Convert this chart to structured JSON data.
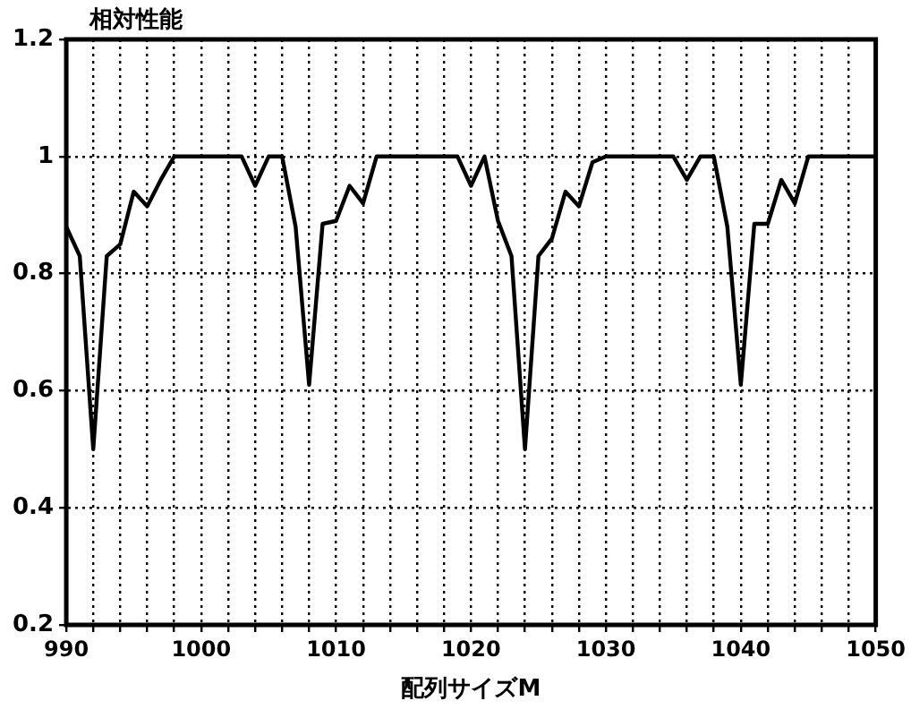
{
  "chart_data": {
    "type": "line",
    "xlabel": "配列サイズM",
    "ylabel": "相対性能",
    "x": [
      990,
      991,
      992,
      993,
      994,
      995,
      996,
      997,
      998,
      999,
      1000,
      1001,
      1002,
      1003,
      1004,
      1005,
      1006,
      1007,
      1008,
      1009,
      1010,
      1011,
      1012,
      1013,
      1014,
      1015,
      1016,
      1017,
      1018,
      1019,
      1020,
      1021,
      1022,
      1023,
      1024,
      1025,
      1026,
      1027,
      1028,
      1029,
      1030,
      1031,
      1032,
      1033,
      1034,
      1035,
      1036,
      1037,
      1038,
      1039,
      1040,
      1041,
      1042,
      1043,
      1044,
      1045,
      1046,
      1047,
      1048,
      1049,
      1050
    ],
    "series": [
      {
        "color": "#000000",
        "values": [
          0.88,
          0.83,
          0.5,
          0.83,
          0.85,
          0.94,
          0.915,
          0.96,
          1,
          1,
          1,
          1,
          1,
          1,
          0.95,
          1,
          1,
          0.88,
          0.61,
          0.885,
          0.89,
          0.95,
          0.92,
          1,
          1,
          1,
          1,
          1,
          1,
          1,
          0.95,
          1,
          0.89,
          0.83,
          0.5,
          0.83,
          0.86,
          0.94,
          0.915,
          0.99,
          1,
          1,
          1,
          1,
          1,
          1,
          0.96,
          1,
          1,
          0.88,
          0.61,
          0.885,
          0.885,
          0.96,
          0.92,
          1,
          1,
          1,
          1,
          1,
          1
        ]
      }
    ],
    "xlim": [
      990,
      1050
    ],
    "xticks": [
      990,
      {
        "value": 992,
        "label": null
      },
      {
        "value": 994,
        "label": null
      },
      {
        "value": 996,
        "label": null
      },
      {
        "value": 998,
        "label": null
      },
      1000,
      {
        "value": 1002,
        "label": null
      },
      {
        "value": 1004,
        "label": null
      },
      {
        "value": 1006,
        "label": null
      },
      {
        "value": 1008,
        "label": null
      },
      1010,
      {
        "value": 1012,
        "label": null
      },
      {
        "value": 1014,
        "label": null
      },
      {
        "value": 1016,
        "label": null
      },
      {
        "value": 1018,
        "label": null
      },
      1020,
      {
        "value": 1022,
        "label": null
      },
      {
        "value": 1024,
        "label": null
      },
      {
        "value": 1026,
        "label": null
      },
      {
        "value": 1028,
        "label": null
      },
      1030,
      {
        "value": 1032,
        "label": null
      },
      {
        "value": 1034,
        "label": null
      },
      {
        "value": 1036,
        "label": null
      },
      {
        "value": 1038,
        "label": null
      },
      1040,
      {
        "value": 1042,
        "label": null
      },
      {
        "value": 1044,
        "label": null
      },
      {
        "value": 1046,
        "label": null
      },
      {
        "value": 1048,
        "label": null
      },
      1050
    ],
    "ylim": [
      0.2,
      1.2
    ],
    "yticks": [
      0.2,
      0.4,
      0.6,
      0.8,
      1,
      1.2
    ],
    "grid": true,
    "legend": false,
    "marker": "none",
    "line_style": "solid"
  }
}
